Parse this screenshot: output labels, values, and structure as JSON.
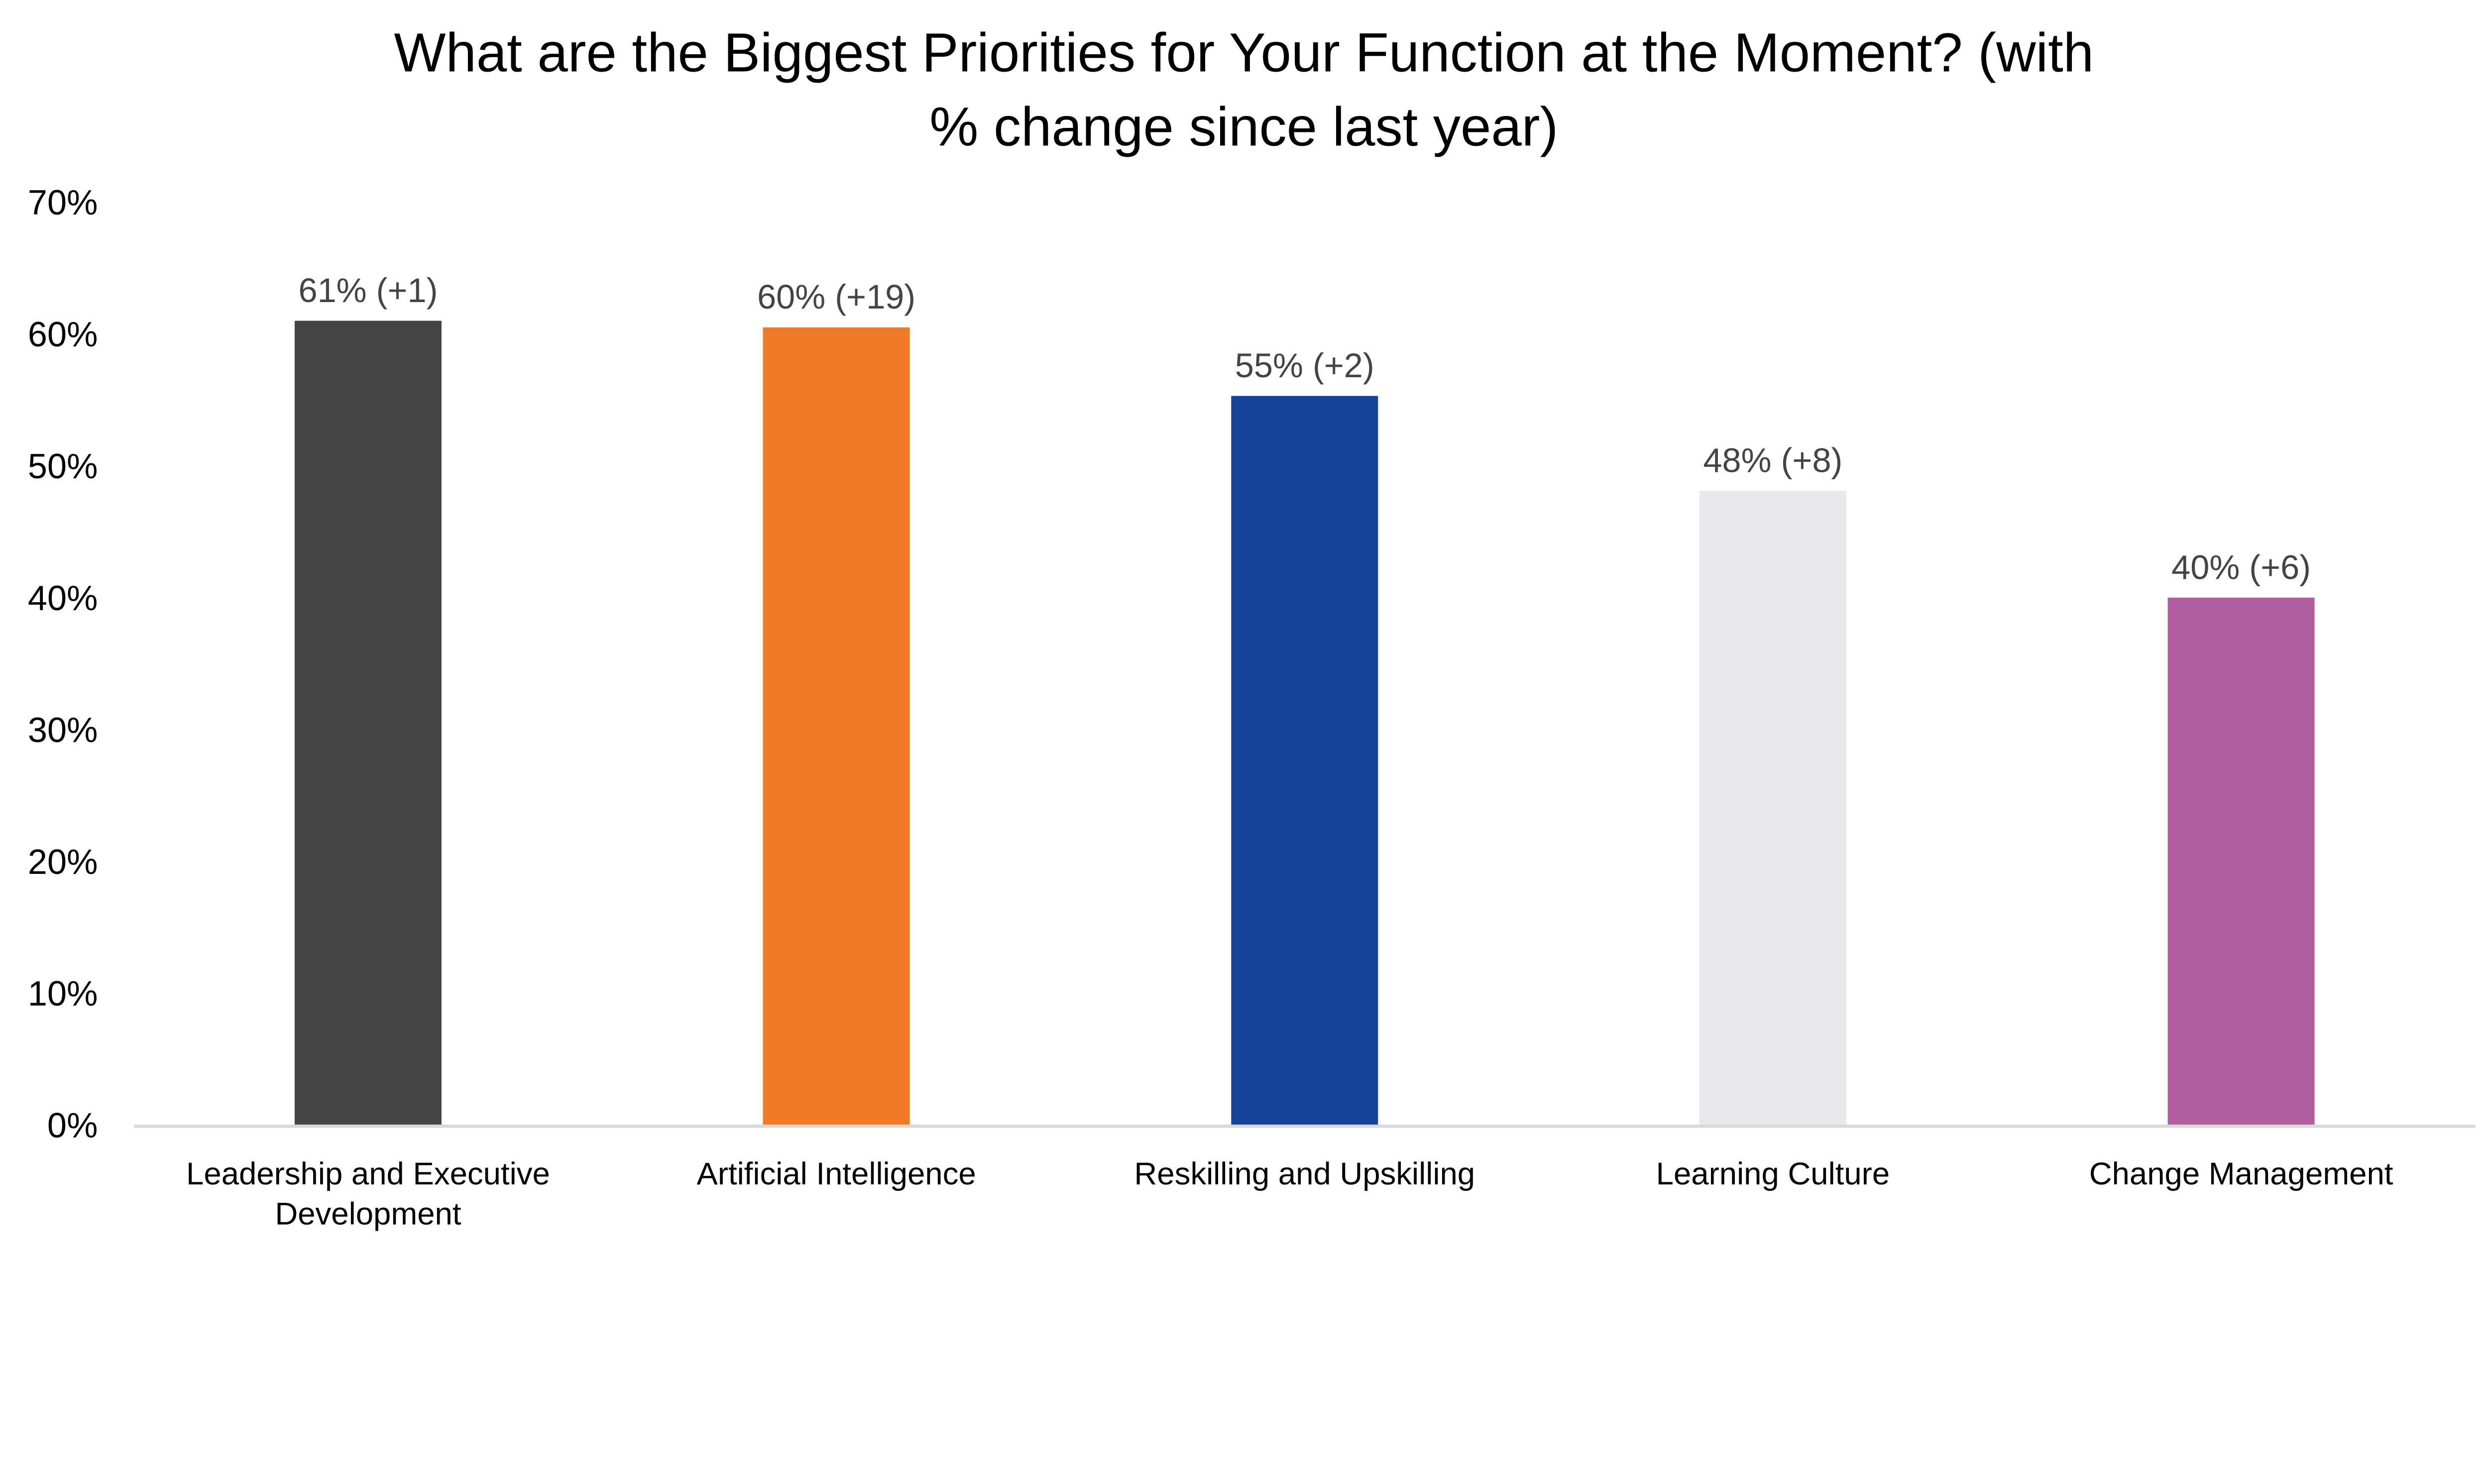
{
  "chart_data": {
    "type": "bar",
    "title": "What are the Biggest Priorities for Your Function at the Moment? (with % change since last year)",
    "title_lines": [
      "What are the Biggest Priorities for Your Function at the Moment? (with",
      "% change since last year)"
    ],
    "xlabel": "",
    "ylabel": "",
    "categories": [
      [
        "Leadership and Executive",
        "Development"
      ],
      [
        "Artificial Intelligence"
      ],
      [
        "Reskilling and Upskilling"
      ],
      [
        "Learning Culture"
      ],
      [
        "Change Management"
      ]
    ],
    "values": [
      61,
      60.5,
      55.3,
      48.1,
      40
    ],
    "changes_since_last_year": [
      1,
      19,
      2,
      8,
      6
    ],
    "data_labels": [
      "61% (+1)",
      "60% (+19)",
      "55% (+2)",
      "48% (+8)",
      "40% (+6)"
    ],
    "colors": [
      "#444444",
      "#F07A26",
      "#154399",
      "#E8E7EC",
      "#B05E9F"
    ],
    "ylim": [
      0,
      70
    ],
    "yticks": [
      0,
      10,
      20,
      30,
      40,
      50,
      60,
      70
    ],
    "ytick_labels": [
      "0%",
      "10%",
      "20%",
      "30%",
      "40%",
      "50%",
      "60%",
      "70%"
    ],
    "grid": false,
    "legend": "none"
  }
}
